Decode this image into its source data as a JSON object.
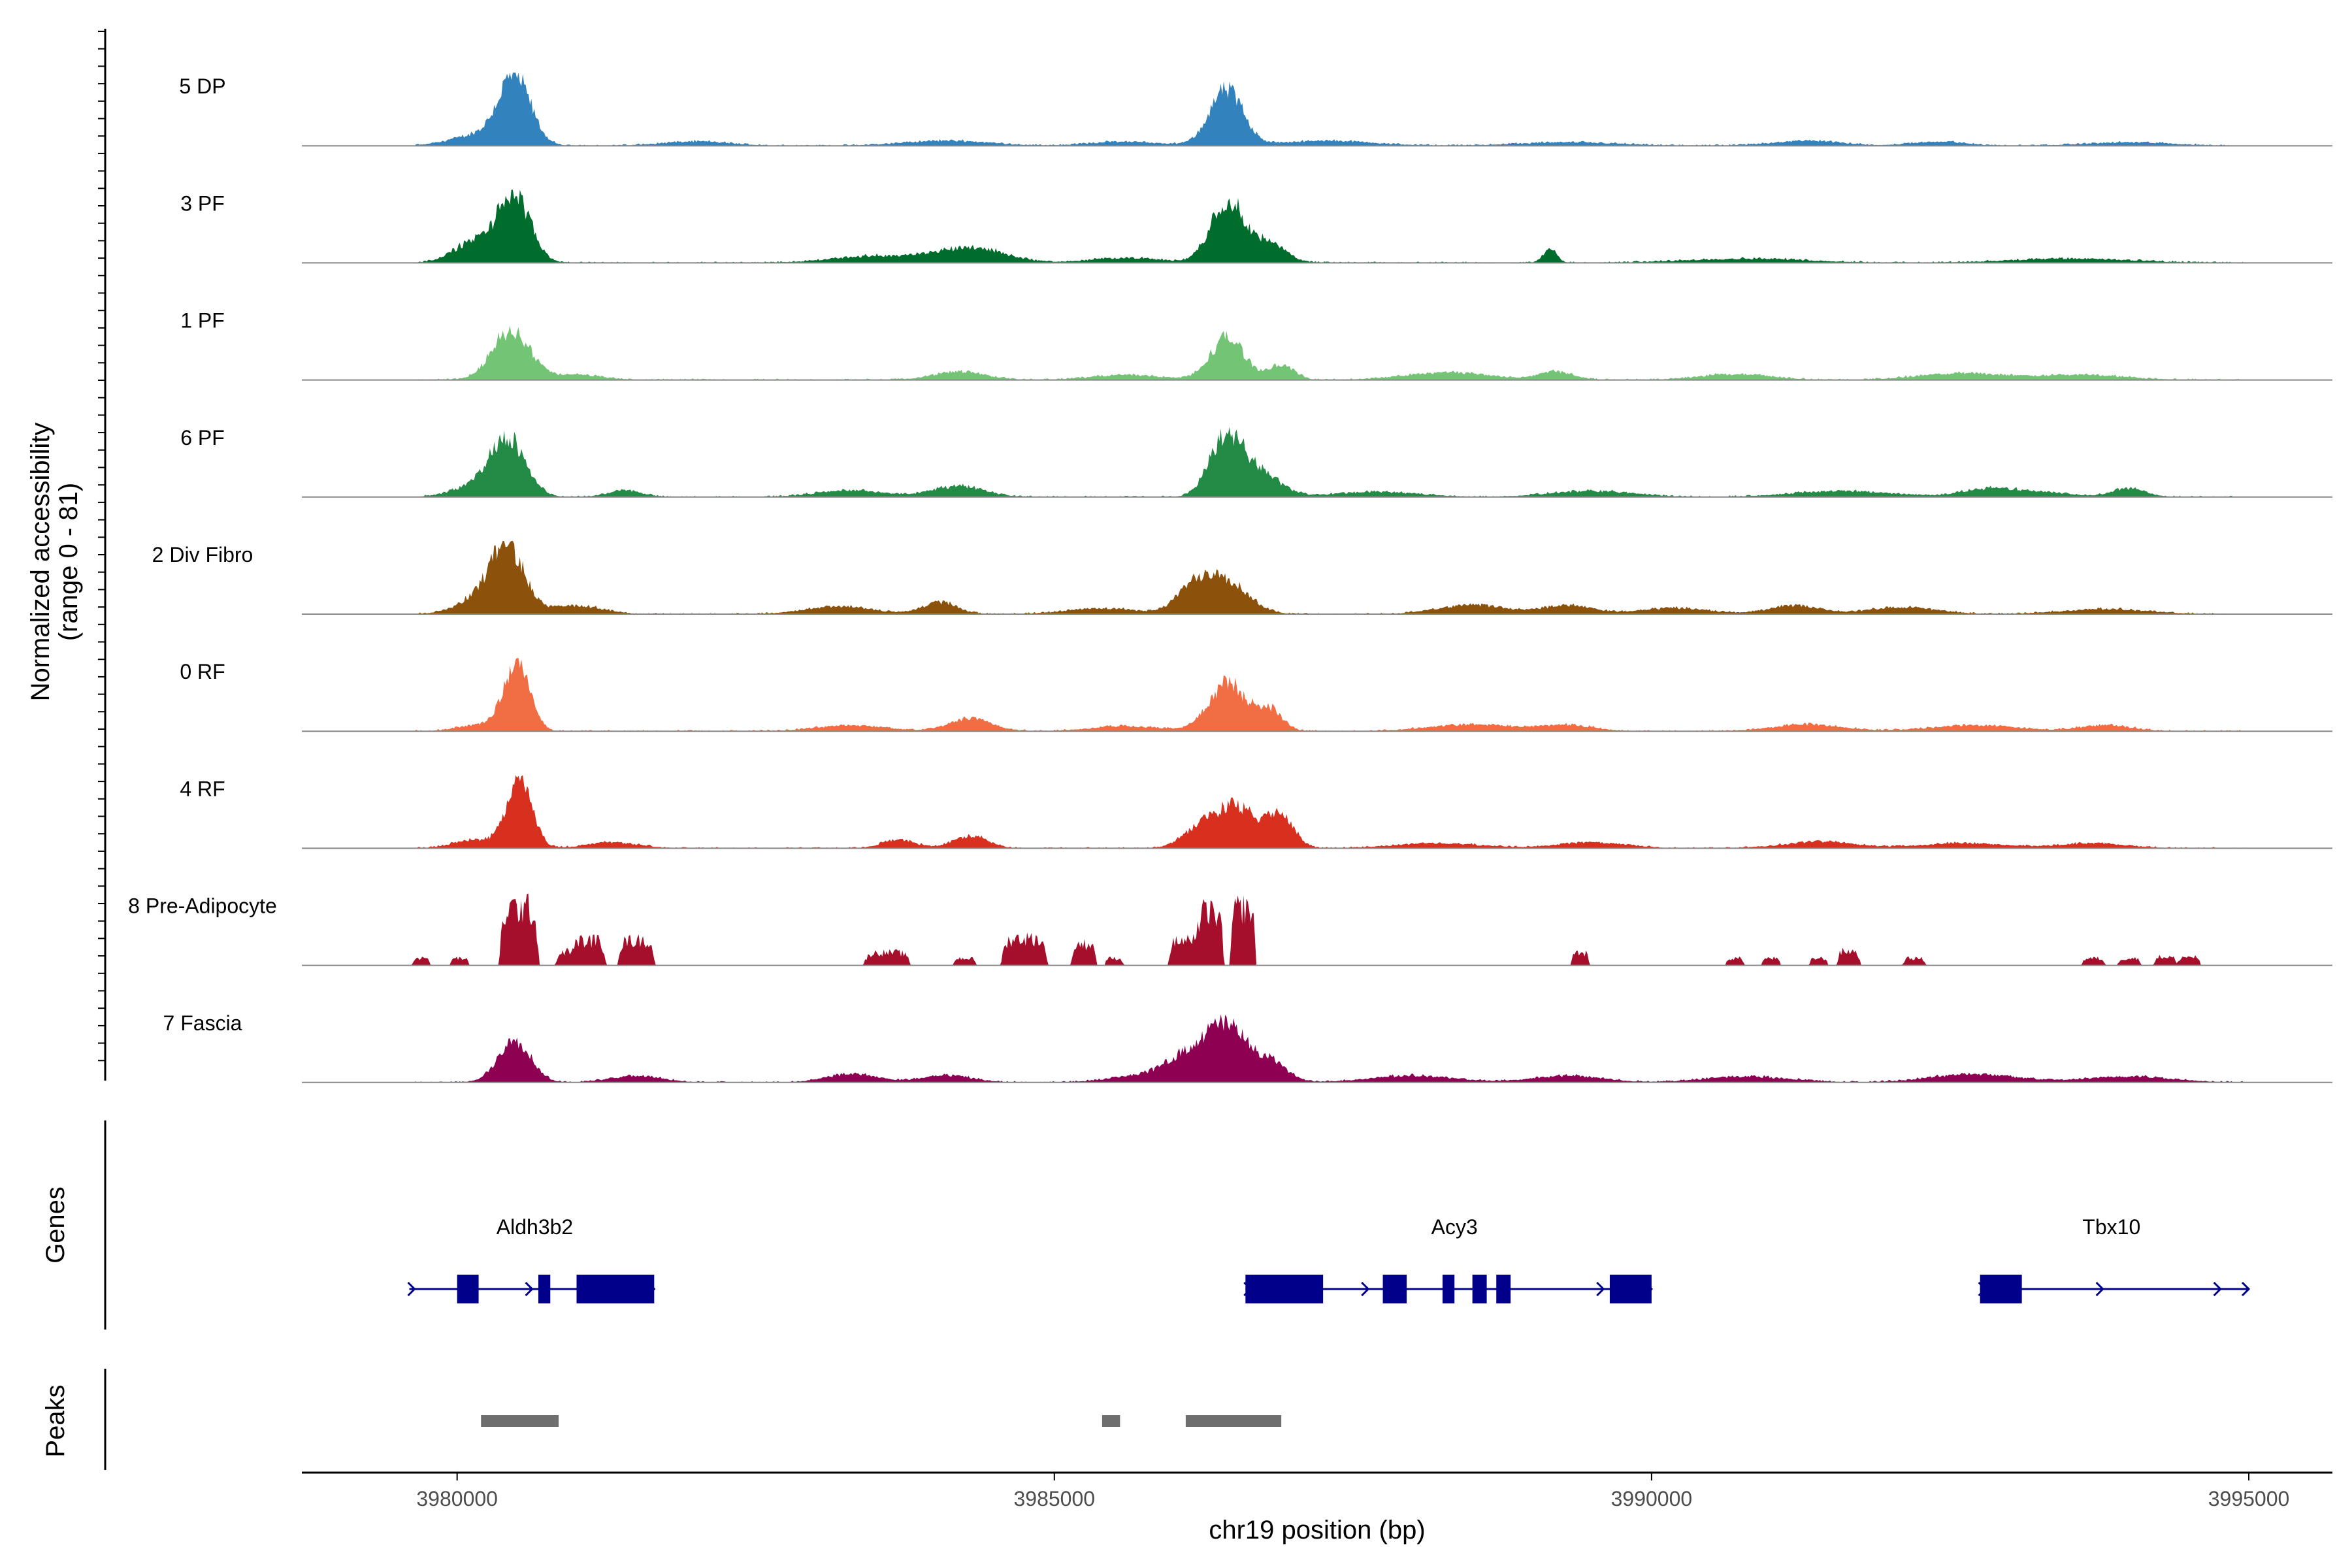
{
  "chart_data": {
    "type": "area",
    "title": "",
    "ylabel_line1": "Normalized accessibility",
    "ylabel_line2": "(range 0 - 81)",
    "y_range": [
      0,
      81
    ],
    "xlabel": "chr19 position (bp)",
    "xlim": [
      3978700,
      3995700
    ],
    "x_ticks": [
      3980000,
      3985000,
      3990000,
      3995000
    ],
    "x_tick_labels": [
      "3980000",
      "3985000",
      "3990000",
      "3995000"
    ],
    "series": [
      {
        "name": "5 DP",
        "color": "#3182bd",
        "peaks": [
          [
            3980480,
            81,
            190
          ],
          [
            3986440,
            66,
            200
          ],
          [
            3980150,
            12,
            300
          ],
          [
            3982000,
            5,
            400
          ],
          [
            3984100,
            6,
            500
          ],
          [
            3985600,
            5,
            400
          ],
          [
            3987300,
            6,
            500
          ],
          [
            3989300,
            4,
            600
          ],
          [
            3991300,
            6,
            400
          ],
          [
            3992400,
            5,
            300
          ],
          [
            3994000,
            4,
            500
          ]
        ]
      },
      {
        "name": "3 PF",
        "color": "#006d2c",
        "peaks": [
          [
            3980480,
            78,
            190
          ],
          [
            3980150,
            25,
            250
          ],
          [
            3986450,
            74,
            200
          ],
          [
            3986800,
            22,
            200
          ],
          [
            3984300,
            18,
            400
          ],
          [
            3983500,
            8,
            500
          ],
          [
            3989150,
            16,
            80
          ],
          [
            3990800,
            5,
            700
          ],
          [
            3993500,
            5,
            700
          ],
          [
            3985600,
            6,
            400
          ]
        ]
      },
      {
        "name": "1 PF",
        "color": "#74c476",
        "peaks": [
          [
            3980450,
            59,
            220
          ],
          [
            3986450,
            50,
            200
          ],
          [
            3986900,
            18,
            150
          ],
          [
            3981000,
            6,
            300
          ],
          [
            3984200,
            10,
            300
          ],
          [
            3988300,
            9,
            500
          ],
          [
            3989200,
            10,
            200
          ],
          [
            3990700,
            7,
            400
          ],
          [
            3992600,
            8,
            500
          ],
          [
            3993600,
            6,
            500
          ],
          [
            3985600,
            6,
            400
          ]
        ]
      },
      {
        "name": "6 PF",
        "color": "#238b45",
        "peaks": [
          [
            3980420,
            71,
            210
          ],
          [
            3986430,
            68,
            190
          ],
          [
            3986700,
            30,
            250
          ],
          [
            3980100,
            10,
            250
          ],
          [
            3981400,
            8,
            200
          ],
          [
            3984200,
            13,
            300
          ],
          [
            3983300,
            8,
            400
          ],
          [
            3987700,
            6,
            500
          ],
          [
            3989500,
            7,
            500
          ],
          [
            3991600,
            7,
            600
          ],
          [
            3992800,
            8,
            300
          ],
          [
            3994000,
            10,
            200
          ],
          [
            3993200,
            6,
            400
          ]
        ]
      },
      {
        "name": "2 Div Fibro",
        "color": "#8c510a",
        "peaks": [
          [
            3980420,
            80,
            200
          ],
          [
            3980150,
            15,
            250
          ],
          [
            3981000,
            10,
            300
          ],
          [
            3986400,
            44,
            280
          ],
          [
            3986150,
            20,
            200
          ],
          [
            3984050,
            14,
            200
          ],
          [
            3983200,
            9,
            400
          ],
          [
            3988500,
            11,
            400
          ],
          [
            3989300,
            10,
            300
          ],
          [
            3990200,
            7,
            400
          ],
          [
            3991200,
            10,
            300
          ],
          [
            3992100,
            8,
            400
          ],
          [
            3993800,
            6,
            500
          ],
          [
            3985400,
            7,
            400
          ]
        ]
      },
      {
        "name": "0 RF",
        "color": "#f16d43",
        "peaks": [
          [
            3980500,
            81,
            150
          ],
          [
            3980200,
            8,
            250
          ],
          [
            3986450,
            57,
            220
          ],
          [
            3986800,
            25,
            150
          ],
          [
            3984300,
            15,
            250
          ],
          [
            3983300,
            7,
            400
          ],
          [
            3985600,
            6,
            400
          ],
          [
            3988500,
            8,
            500
          ],
          [
            3989300,
            7,
            300
          ],
          [
            3991300,
            8,
            400
          ],
          [
            3992700,
            7,
            500
          ],
          [
            3993800,
            7,
            300
          ]
        ]
      },
      {
        "name": "4 RF",
        "color": "#d7301f",
        "peaks": [
          [
            3980520,
            81,
            150
          ],
          [
            3980150,
            10,
            250
          ],
          [
            3986520,
            50,
            250
          ],
          [
            3986900,
            40,
            150
          ],
          [
            3986200,
            20,
            200
          ],
          [
            3984300,
            15,
            200
          ],
          [
            3983700,
            10,
            200
          ],
          [
            3981300,
            7,
            300
          ],
          [
            3988200,
            6,
            500
          ],
          [
            3989500,
            7,
            400
          ],
          [
            3991400,
            8,
            400
          ],
          [
            3992600,
            6,
            500
          ],
          [
            3993700,
            6,
            400
          ]
        ]
      },
      {
        "name": "8 Pre-Adipocyte",
        "color": "#a50f2c",
        "blocky": true,
        "peaks": [
          [
            3980520,
            81,
            170
          ],
          [
            3981100,
            35,
            150
          ],
          [
            3981500,
            35,
            160
          ],
          [
            3981000,
            20,
            180
          ],
          [
            3986300,
            75,
            120
          ],
          [
            3986580,
            81,
            110
          ],
          [
            3986100,
            35,
            150
          ],
          [
            3984750,
            38,
            200
          ],
          [
            3985250,
            30,
            110
          ],
          [
            3983600,
            18,
            200
          ],
          [
            3984250,
            10,
            100
          ],
          [
            3985500,
            10,
            80
          ],
          [
            3979700,
            10,
            80
          ],
          [
            3980020,
            10,
            80
          ],
          [
            3989400,
            18,
            80
          ],
          [
            3990700,
            10,
            80
          ],
          [
            3991000,
            10,
            80
          ],
          [
            3991400,
            10,
            80
          ],
          [
            3991650,
            20,
            100
          ],
          [
            3992200,
            10,
            100
          ],
          [
            3993700,
            10,
            100
          ],
          [
            3994000,
            10,
            100
          ],
          [
            3994300,
            12,
            100
          ],
          [
            3994500,
            12,
            100
          ]
        ]
      },
      {
        "name": "7 Fascia",
        "color": "#8e0152",
        "peaks": [
          [
            3980480,
            52,
            190
          ],
          [
            3986450,
            62,
            220
          ],
          [
            3986150,
            30,
            250
          ],
          [
            3986800,
            25,
            200
          ],
          [
            3985800,
            10,
            400
          ],
          [
            3984100,
            8,
            300
          ],
          [
            3983300,
            10,
            300
          ],
          [
            3981500,
            8,
            300
          ],
          [
            3988000,
            8,
            500
          ],
          [
            3989300,
            8,
            400
          ],
          [
            3990800,
            7,
            500
          ],
          [
            3992700,
            10,
            500
          ],
          [
            3994000,
            7,
            500
          ]
        ]
      }
    ],
    "genes": [
      {
        "name": "Aldh3b2",
        "start": 3979600,
        "end": 3981650,
        "strand": "+",
        "exons": [
          [
            3980000,
            3980180
          ],
          [
            3980680,
            3980780
          ],
          [
            3981000,
            3981650
          ]
        ]
      },
      {
        "name": "Acy3",
        "start": 3986600,
        "end": 3990000,
        "strand": "+",
        "exons": [
          [
            3986600,
            3987250
          ],
          [
            3987750,
            3987950
          ],
          [
            3988250,
            3988350
          ],
          [
            3988500,
            3988620
          ],
          [
            3988700,
            3988820
          ],
          [
            3989650,
            3990000
          ]
        ]
      },
      {
        "name": "Tbx10",
        "start": 3992750,
        "end": 3995000,
        "strand": "+",
        "exons": [
          [
            3992750,
            3993100
          ]
        ]
      }
    ],
    "peaks_track": [
      [
        3980200,
        3980850
      ],
      [
        3985400,
        3985550
      ],
      [
        3986100,
        3986900
      ]
    ],
    "panel_labels": [
      "Genes",
      "Peaks"
    ]
  }
}
